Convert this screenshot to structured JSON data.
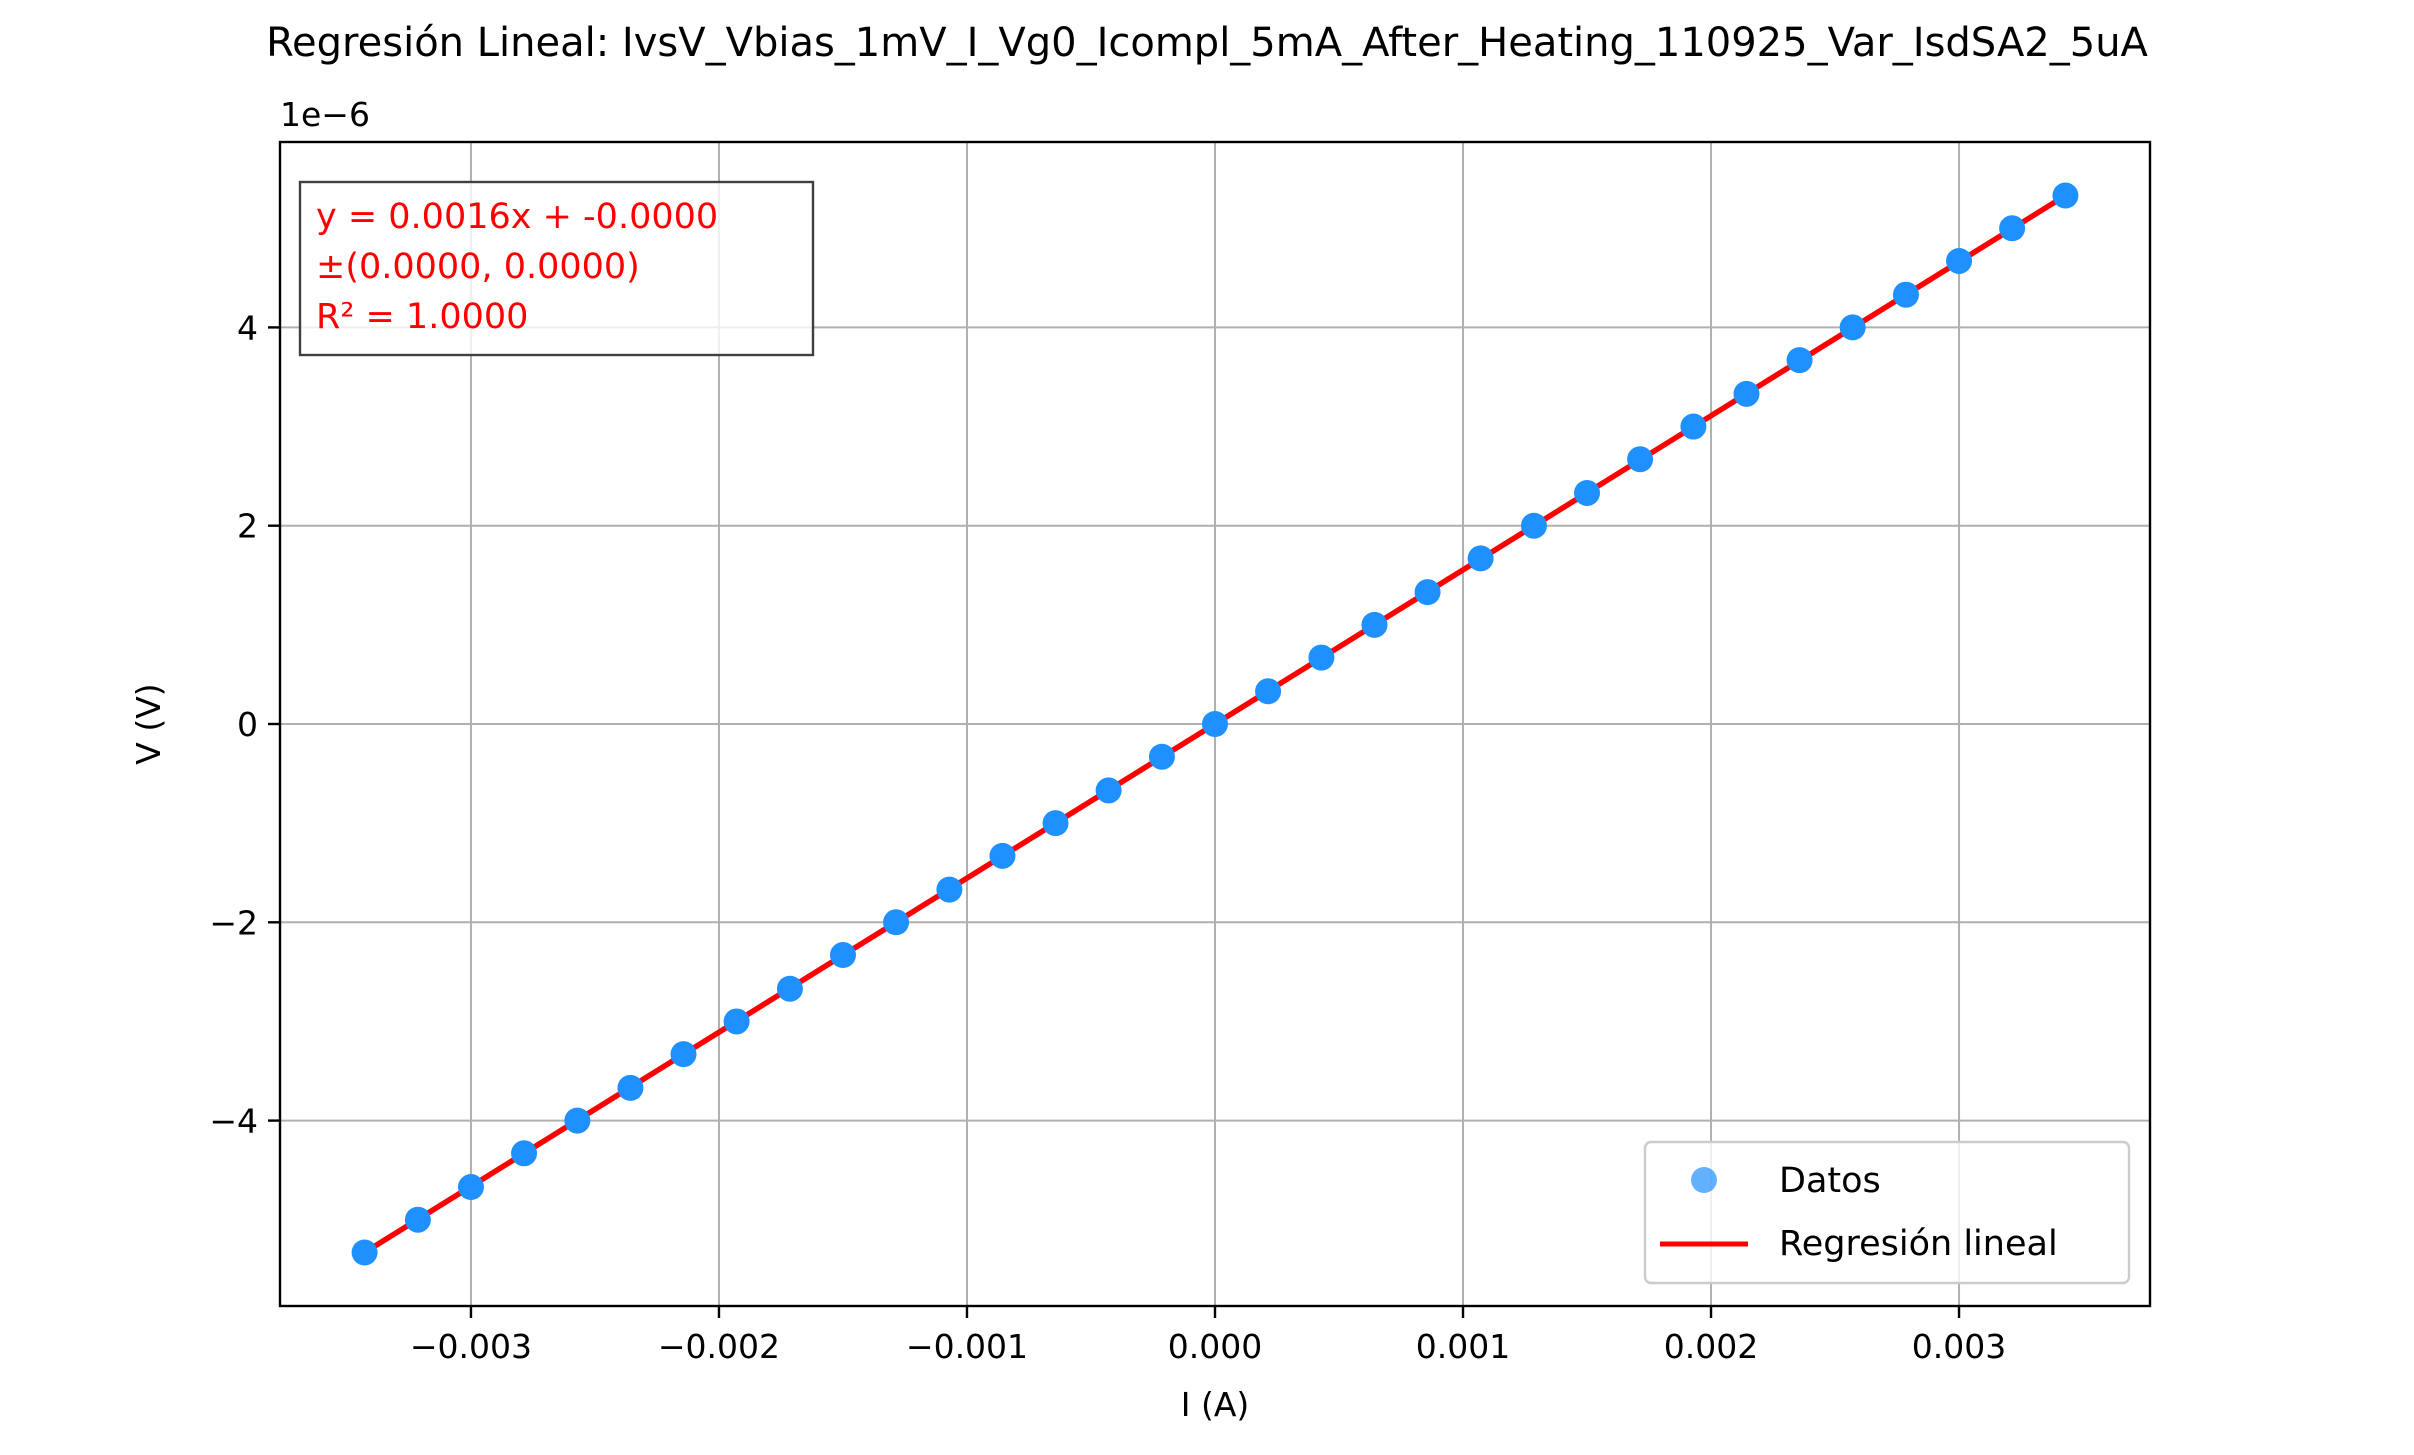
{
  "chart_data": {
    "type": "scatter",
    "title": "Regresión Lineal: IvsV_Vbias_1mV_I_Vg0_Icompl_5mA_After_Heating_110925_Var_IsdSA2_5uA",
    "xlabel": "I (A)",
    "ylabel": "V (V)",
    "y_offset_label": "1e−6",
    "xlim": [
      -0.00377,
      0.00377
    ],
    "ylim": [
      -5.87,
      5.87
    ],
    "y_scale_factor": 1e-06,
    "grid": true,
    "legend_position": "lower-right",
    "x_ticks": [
      -0.003,
      -0.002,
      -0.001,
      0.0,
      0.001,
      0.002,
      0.003
    ],
    "x_tick_labels": [
      "−0.003",
      "−0.002",
      "−0.001",
      "0.000",
      "0.001",
      "0.002",
      "0.003"
    ],
    "y_ticks": [
      -4,
      -2,
      0,
      2,
      4
    ],
    "y_tick_labels": [
      "−4",
      "−2",
      "0",
      "2",
      "4"
    ],
    "series": [
      {
        "name": "Datos",
        "kind": "scatter",
        "color": "#1e90ff",
        "x": [
          -0.003429,
          -0.003214,
          -0.003,
          -0.002786,
          -0.002571,
          -0.002357,
          -0.002143,
          -0.001929,
          -0.001714,
          -0.0015,
          -0.001286,
          -0.001071,
          -0.000857,
          -0.000643,
          -0.000429,
          -0.000214,
          0.0,
          0.000214,
          0.000429,
          0.000643,
          0.000857,
          0.001071,
          0.001286,
          0.0015,
          0.001714,
          0.001929,
          0.002143,
          0.002357,
          0.002571,
          0.002786,
          0.003,
          0.003214,
          0.003429
        ],
        "y": [
          -5.33,
          -5.0,
          -4.67,
          -4.33,
          -4.0,
          -3.67,
          -3.33,
          -3.0,
          -2.67,
          -2.33,
          -2.0,
          -1.67,
          -1.33,
          -1.0,
          -0.67,
          -0.33,
          0.0,
          0.33,
          0.67,
          1.0,
          1.33,
          1.67,
          2.0,
          2.33,
          2.67,
          3.0,
          3.33,
          3.67,
          4.0,
          4.33,
          4.67,
          5.0,
          5.33
        ]
      },
      {
        "name": "Regresión lineal",
        "kind": "line",
        "color": "#ff0000",
        "x": [
          -0.003429,
          0.003429
        ],
        "y": [
          -5.33,
          5.33
        ]
      }
    ],
    "annotation": {
      "lines": [
        "y = 0.0016x + -0.0000",
        "±(0.0000, 0.0000)",
        "R² = 1.0000"
      ],
      "color": "#ff0000",
      "position": "top-left"
    }
  }
}
